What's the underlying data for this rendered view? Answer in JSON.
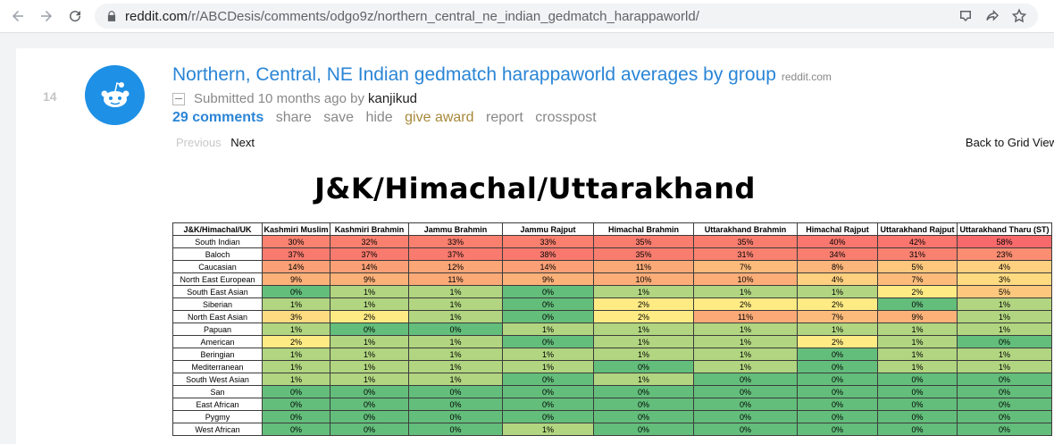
{
  "browser": {
    "url_host": "reddit.com",
    "url_path": "/r/ABCDesis/comments/odgo9z/northern_central_ne_indian_gedmatch_harappaworld/"
  },
  "post": {
    "rank": "14",
    "title": "Northern, Central, NE Indian gedmatch harappaworld averages by group",
    "domain": "reddit.com",
    "submitted_prefix": "Submitted",
    "submitted_time": "10 months ago",
    "by": "by",
    "author": "kanjikud",
    "buttons": {
      "comments": "29 comments",
      "share": "share",
      "save": "save",
      "hide": "hide",
      "give_award": "give award",
      "report": "report",
      "crosspost": "crosspost"
    },
    "previous": "Previous",
    "next": "Next",
    "grid_view": "Back to Grid View"
  },
  "image": {
    "heading": "J&K/Himachal/Uttarakhand",
    "colors": {
      "low": "#63be7b",
      "mid": "#ffeb84",
      "high": "#f8696b"
    },
    "table": {
      "headers": [
        "J&K/Himachal/UK",
        "Kashmiri Muslim",
        "Kashmiri Brahmin",
        "Jammu Brahmin",
        "Jammu Rajput",
        "Himachal Brahmin",
        "Uttarakhand Brahmin",
        "Himachal Rajput",
        "Uttarakhand Rajput",
        "Uttarakhand Tharu (ST)"
      ],
      "rows": [
        {
          "label": "South Indian",
          "values": [
            "30%",
            "32%",
            "33%",
            "33%",
            "35%",
            "35%",
            "40%",
            "42%",
            "58%"
          ]
        },
        {
          "label": "Baloch",
          "values": [
            "37%",
            "37%",
            "37%",
            "38%",
            "35%",
            "31%",
            "34%",
            "31%",
            "23%"
          ]
        },
        {
          "label": "Caucasian",
          "values": [
            "14%",
            "14%",
            "12%",
            "14%",
            "11%",
            "7%",
            "8%",
            "5%",
            "4%"
          ]
        },
        {
          "label": "North East European",
          "values": [
            "9%",
            "9%",
            "11%",
            "9%",
            "10%",
            "10%",
            "4%",
            "7%",
            "3%"
          ]
        },
        {
          "label": "South East Asian",
          "values": [
            "0%",
            "1%",
            "1%",
            "0%",
            "1%",
            "1%",
            "1%",
            "2%",
            "5%"
          ]
        },
        {
          "label": "Siberian",
          "values": [
            "1%",
            "1%",
            "1%",
            "0%",
            "2%",
            "2%",
            "2%",
            "0%",
            "1%"
          ]
        },
        {
          "label": "North East Asian",
          "values": [
            "3%",
            "2%",
            "1%",
            "0%",
            "2%",
            "11%",
            "7%",
            "9%",
            "1%"
          ]
        },
        {
          "label": "Papuan",
          "values": [
            "1%",
            "0%",
            "0%",
            "1%",
            "1%",
            "1%",
            "1%",
            "1%",
            "1%"
          ]
        },
        {
          "label": "American",
          "values": [
            "2%",
            "1%",
            "1%",
            "0%",
            "1%",
            "1%",
            "2%",
            "1%",
            "0%"
          ]
        },
        {
          "label": "Beringian",
          "values": [
            "1%",
            "1%",
            "1%",
            "1%",
            "1%",
            "1%",
            "0%",
            "1%",
            "1%"
          ]
        },
        {
          "label": "Mediterranean",
          "values": [
            "1%",
            "1%",
            "1%",
            "1%",
            "0%",
            "1%",
            "0%",
            "1%",
            "1%"
          ]
        },
        {
          "label": "South West Asian",
          "values": [
            "1%",
            "1%",
            "1%",
            "0%",
            "1%",
            "0%",
            "0%",
            "0%",
            "0%"
          ]
        },
        {
          "label": "San",
          "values": [
            "0%",
            "0%",
            "0%",
            "0%",
            "0%",
            "0%",
            "0%",
            "0%",
            "0%"
          ]
        },
        {
          "label": "East African",
          "values": [
            "0%",
            "0%",
            "0%",
            "0%",
            "0%",
            "0%",
            "0%",
            "0%",
            "0%"
          ]
        },
        {
          "label": "Pygmy",
          "values": [
            "0%",
            "0%",
            "0%",
            "0%",
            "0%",
            "0%",
            "0%",
            "0%",
            "0%"
          ]
        },
        {
          "label": "West African",
          "values": [
            "0%",
            "0%",
            "0%",
            "1%",
            "0%",
            "0%",
            "0%",
            "0%",
            "0%"
          ]
        }
      ]
    }
  }
}
